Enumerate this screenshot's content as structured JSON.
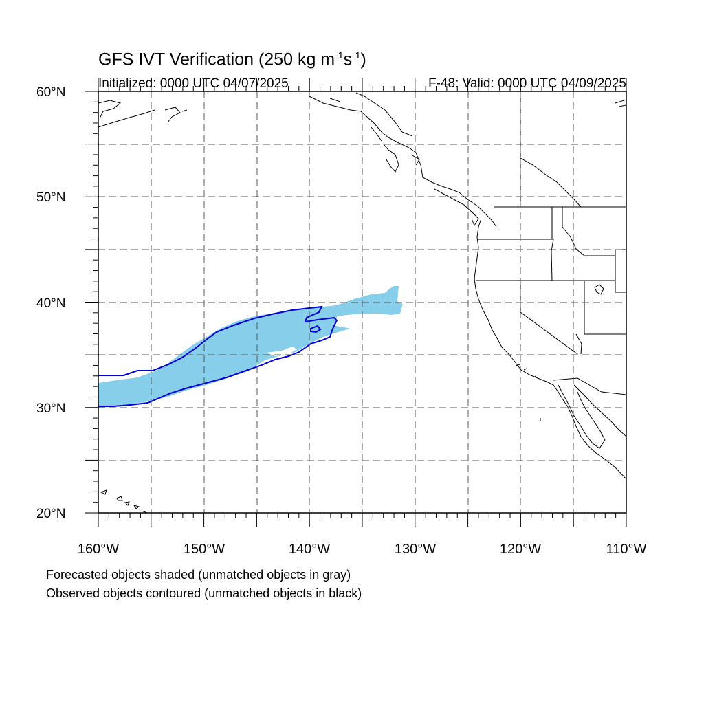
{
  "title": {
    "main": "GFS IVT Verification (250 kg m",
    "exp1": "-1",
    "mid": "s",
    "exp2": "-1",
    "end": ")"
  },
  "subtitle_left": "Initialized: 0000 UTC 04/07/2025",
  "subtitle_right": "F-48: Valid: 0000 UTC 04/09/2025",
  "footnotes": [
    "Forecasted objects shaded (unmatched objects in gray)",
    "Observed objects contoured (unmatched objects in black)"
  ],
  "axes": {
    "lat_labels": [
      "20°N",
      "30°N",
      "40°N",
      "50°N",
      "60°N"
    ],
    "lon_labels": [
      "160°W",
      "150°W",
      "140°W",
      "130°W",
      "120°W",
      "110°W"
    ],
    "lat_range": [
      20,
      60
    ],
    "lon_range": [
      -160,
      -110
    ],
    "grid": "dashed every 5 degrees"
  },
  "colors": {
    "forecast_fill": "#87ceeb",
    "observed_contour": "#0000dd",
    "coastline": "#000000",
    "grid": "#555555"
  }
}
